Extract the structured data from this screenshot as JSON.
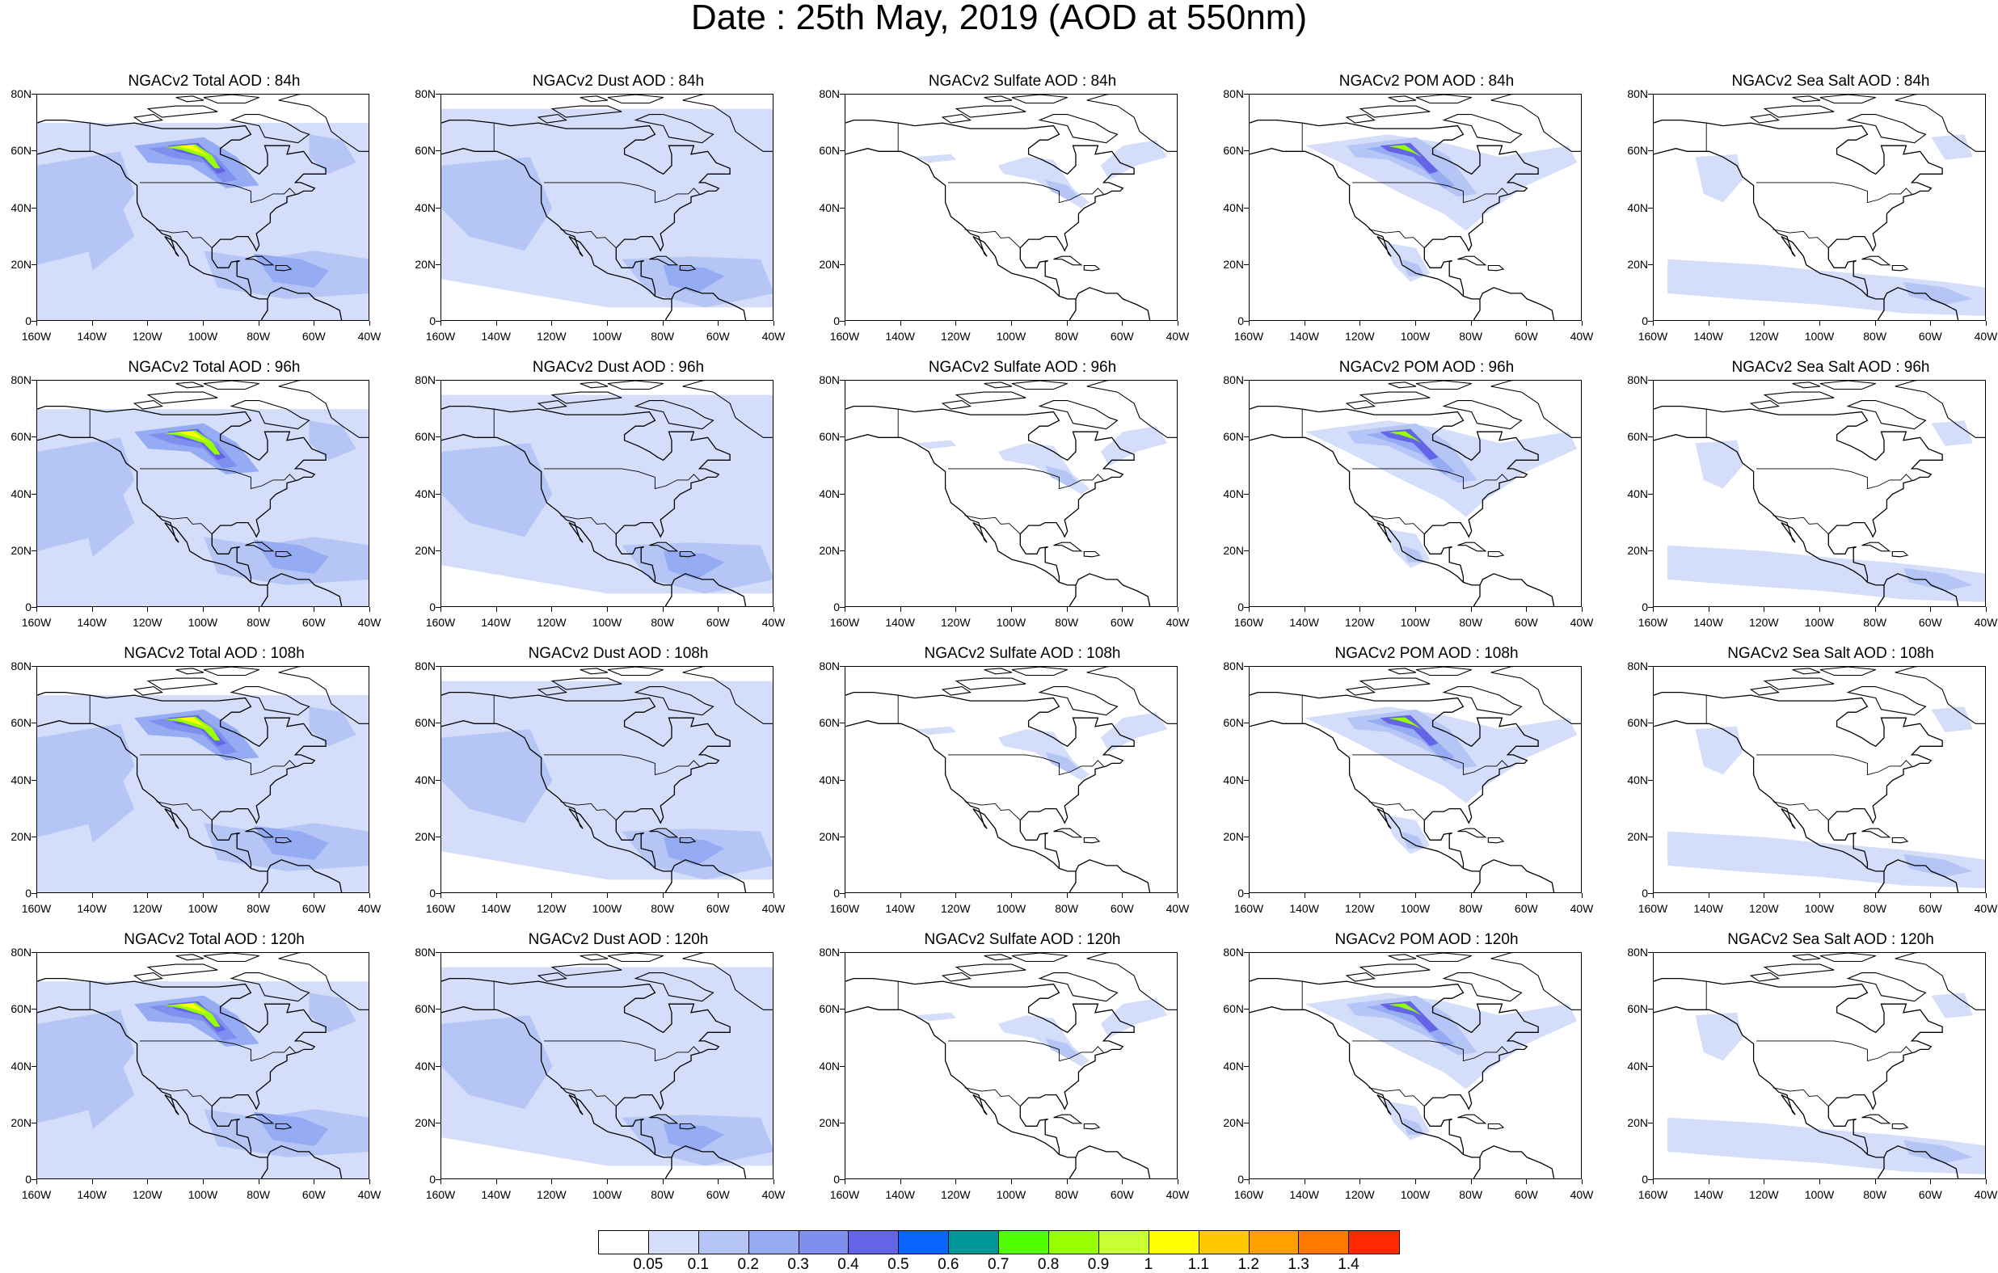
{
  "title": "Date : 25th May, 2019 (AOD at 550nm)",
  "panels": [
    {
      "title": "NGACv2 Total AOD : 84h",
      "species": "total"
    },
    {
      "title": "NGACv2 Dust AOD : 84h",
      "species": "dust"
    },
    {
      "title": "NGACv2 Sulfate AOD : 84h",
      "species": "sulfate"
    },
    {
      "title": "NGACv2 POM AOD : 84h",
      "species": "pom"
    },
    {
      "title": "NGACv2 Sea Salt AOD : 84h",
      "species": "seasalt"
    },
    {
      "title": "NGACv2 Total AOD : 96h",
      "species": "total"
    },
    {
      "title": "NGACv2 Dust AOD : 96h",
      "species": "dust"
    },
    {
      "title": "NGACv2 Sulfate AOD : 96h",
      "species": "sulfate"
    },
    {
      "title": "NGACv2 POM AOD : 96h",
      "species": "pom"
    },
    {
      "title": "NGACv2 Sea Salt AOD : 96h",
      "species": "seasalt"
    },
    {
      "title": "NGACv2 Total AOD : 108h",
      "species": "total"
    },
    {
      "title": "NGACv2 Dust AOD : 108h",
      "species": "dust"
    },
    {
      "title": "NGACv2 Sulfate AOD : 108h",
      "species": "sulfate"
    },
    {
      "title": "NGACv2 POM AOD : 108h",
      "species": "pom"
    },
    {
      "title": "NGACv2 Sea Salt AOD : 108h",
      "species": "seasalt"
    },
    {
      "title": "NGACv2 Total AOD : 120h",
      "species": "total"
    },
    {
      "title": "NGACv2 Dust AOD : 120h",
      "species": "dust"
    },
    {
      "title": "NGACv2 Sulfate AOD : 120h",
      "species": "sulfate"
    },
    {
      "title": "NGACv2 POM AOD : 120h",
      "species": "pom"
    },
    {
      "title": "NGACv2 Sea Salt  AOD : 120h",
      "species": "seasalt"
    }
  ],
  "axes": {
    "x_labels": [
      "160W",
      "140W",
      "120W",
      "100W",
      "80W",
      "60W",
      "40W"
    ],
    "y_labels": [
      "80N",
      "60N",
      "40N",
      "20N",
      "0"
    ]
  },
  "colorbar": {
    "colors": [
      "#ffffff",
      "#d4defa",
      "#b4c5f6",
      "#95abf3",
      "#7f8ff0",
      "#6464e6",
      "#0a64ff",
      "#009696",
      "#50ff00",
      "#96ff00",
      "#c8ff32",
      "#ffff00",
      "#ffc800",
      "#ffa000",
      "#ff7800",
      "#ff2800"
    ],
    "labels": [
      "0.05",
      "0.1",
      "0.2",
      "0.3",
      "0.4",
      "0.5",
      "0.6",
      "0.7",
      "0.8",
      "0.9",
      "1",
      "1.1",
      "1.2",
      "1.3",
      "1.4"
    ]
  }
}
